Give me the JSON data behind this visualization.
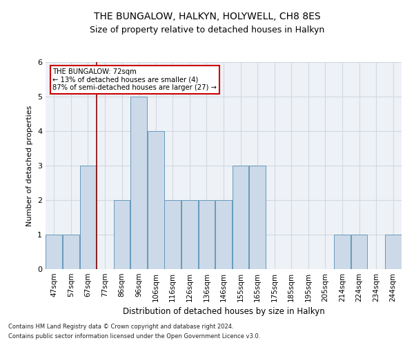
{
  "title1": "THE BUNGALOW, HALKYN, HOLYWELL, CH8 8ES",
  "title2": "Size of property relative to detached houses in Halkyn",
  "xlabel": "Distribution of detached houses by size in Halkyn",
  "ylabel": "Number of detached properties",
  "categories": [
    "47sqm",
    "57sqm",
    "67sqm",
    "77sqm",
    "86sqm",
    "96sqm",
    "106sqm",
    "116sqm",
    "126sqm",
    "136sqm",
    "146sqm",
    "155sqm",
    "165sqm",
    "175sqm",
    "185sqm",
    "195sqm",
    "205sqm",
    "214sqm",
    "224sqm",
    "234sqm",
    "244sqm"
  ],
  "values": [
    1,
    1,
    3,
    0,
    2,
    5,
    4,
    2,
    2,
    2,
    2,
    3,
    3,
    0,
    0,
    0,
    0,
    1,
    1,
    0,
    1
  ],
  "bar_color": "#ccd9e8",
  "bar_edge_color": "#6699bb",
  "property_line_color": "#880000",
  "annotation_line1": "THE BUNGALOW: 72sqm",
  "annotation_line2": "← 13% of detached houses are smaller (4)",
  "annotation_line3": "87% of semi-detached houses are larger (27) →",
  "annotation_box_color": "#ffffff",
  "annotation_box_edge": "#cc0000",
  "ylim": [
    0,
    6
  ],
  "yticks": [
    0,
    1,
    2,
    3,
    4,
    5,
    6
  ],
  "footnote1": "Contains HM Land Registry data © Crown copyright and database right 2024.",
  "footnote2": "Contains public sector information licensed under the Open Government Licence v3.0.",
  "bar_width": 0.97,
  "grid_color": "#d0d8e0",
  "background_color": "#eef2f7",
  "title1_fontsize": 10,
  "title2_fontsize": 9,
  "xlabel_fontsize": 8.5,
  "ylabel_fontsize": 8,
  "tick_fontsize": 7.5,
  "footnote_fontsize": 6
}
